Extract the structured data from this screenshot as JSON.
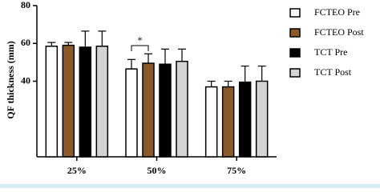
{
  "chart_data": {
    "type": "bar",
    "y_label": "QF thickness (mm)",
    "categories": [
      "25%",
      "50%",
      "75%"
    ],
    "series": [
      {
        "name": "FCTEO Pre",
        "color": "#ffffff",
        "values": [
          58.5,
          46.5,
          37
        ],
        "errors": [
          2,
          5,
          3
        ]
      },
      {
        "name": "FCTEO Post",
        "color": "#8b5a2b",
        "values": [
          59,
          49.5,
          37
        ],
        "errors": [
          1.5,
          5,
          3
        ]
      },
      {
        "name": "TCT Pre",
        "color": "#000000",
        "values": [
          58,
          49,
          39.5
        ],
        "errors": [
          8.5,
          8,
          8.5
        ]
      },
      {
        "name": "TCT Post",
        "color": "#d3d3d3",
        "values": [
          58.5,
          50.5,
          40
        ],
        "errors": [
          8,
          6.5,
          8
        ]
      }
    ],
    "annotation": "*",
    "ylim": [
      0,
      80
    ],
    "yticks": [
      40,
      60,
      80
    ]
  }
}
